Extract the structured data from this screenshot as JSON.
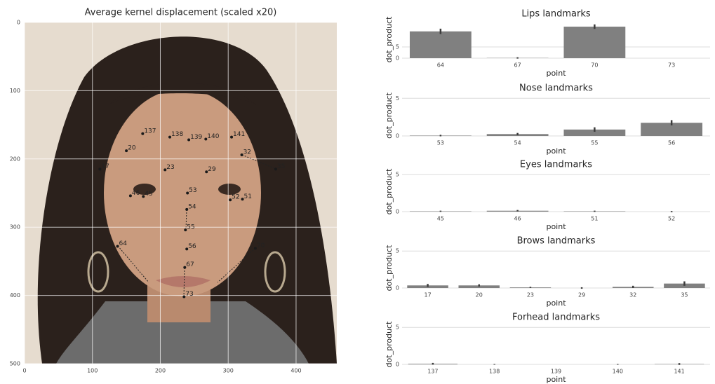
{
  "chart_data": [
    {
      "type": "scatter",
      "title": "Average kernel displacement (scaled x20)",
      "xlim": [
        0,
        460
      ],
      "ylim": [
        500,
        0
      ],
      "xticks": [
        0,
        100,
        200,
        300,
        400
      ],
      "yticks": [
        0,
        100,
        200,
        300,
        400,
        500
      ],
      "grid": true,
      "color": "#1a1a1a",
      "points": [
        "137",
        "138",
        "139",
        "140",
        "141",
        "20",
        "17",
        "23",
        "29",
        "32",
        "35",
        "46",
        "45",
        "51",
        "52",
        "53",
        "54",
        "55",
        "56",
        "64",
        "67",
        "70",
        "73"
      ],
      "x": [
        174,
        214,
        242,
        267,
        305,
        150,
        111,
        207,
        268,
        320,
        370,
        156,
        175,
        321,
        303,
        240,
        239,
        237,
        239,
        137,
        236,
        340,
        235
      ],
      "y": [
        163,
        168,
        172,
        171,
        168,
        188,
        215,
        216,
        219,
        194,
        215,
        254,
        255,
        259,
        260,
        250,
        274,
        304,
        332,
        328,
        359,
        331,
        402
      ]
    },
    {
      "type": "bar",
      "title": "Lips landmarks",
      "xlabel": "point",
      "ylabel": "dot_product",
      "categories": [
        "64",
        "67",
        "70",
        "73"
      ],
      "values": [
        11.9,
        0.1,
        14,
        0
      ],
      "errors": [
        1.2,
        0.3,
        1,
        0
      ],
      "color": "#808080",
      "ylim": [
        0,
        16.5
      ],
      "yticks": [
        0,
        5
      ],
      "grid": true
    },
    {
      "type": "bar",
      "title": "Nose landmarks",
      "xlabel": "point",
      "ylabel": "dot_product",
      "categories": [
        "53",
        "54",
        "55",
        "56"
      ],
      "values": [
        0.05,
        0.25,
        0.85,
        1.75
      ],
      "errors": [
        0.1,
        0.15,
        0.3,
        0.35
      ],
      "color": "#808080",
      "ylim": [
        0,
        5.4
      ],
      "yticks": [
        0,
        5
      ],
      "grid": true
    },
    {
      "type": "bar",
      "title": "Eyes landmarks",
      "xlabel": "point",
      "ylabel": "dot_product",
      "categories": [
        "45",
        "46",
        "51",
        "52"
      ],
      "values": [
        0.05,
        0.12,
        0.05,
        0
      ],
      "errors": [
        0.08,
        0.1,
        0.08,
        0.08
      ],
      "color": "#808080",
      "ylim": [
        0,
        5.4
      ],
      "yticks": [
        0,
        5
      ],
      "grid": true
    },
    {
      "type": "bar",
      "title": "Brows landmarks",
      "xlabel": "point",
      "ylabel": "dot_product",
      "categories": [
        "17",
        "20",
        "23",
        "29",
        "32",
        "35"
      ],
      "values": [
        0.35,
        0.35,
        0.08,
        0,
        0.15,
        0.6
      ],
      "errors": [
        0.2,
        0.15,
        0.08,
        0.1,
        0.15,
        0.3
      ],
      "color": "#808080",
      "ylim": [
        0,
        5.4
      ],
      "yticks": [
        0,
        5
      ],
      "grid": true
    },
    {
      "type": "bar",
      "title": "Forhead landmarks",
      "xlabel": "point",
      "ylabel": "dot_product",
      "categories": [
        "137",
        "138",
        "139",
        "140",
        "141"
      ],
      "values": [
        0.08,
        0,
        0,
        0,
        0.05
      ],
      "errors": [
        0.12,
        0.05,
        0,
        0.05,
        0.12
      ],
      "color": "#808080",
      "ylim": [
        0,
        5.4
      ],
      "yticks": [
        0,
        5
      ],
      "grid": true
    }
  ]
}
